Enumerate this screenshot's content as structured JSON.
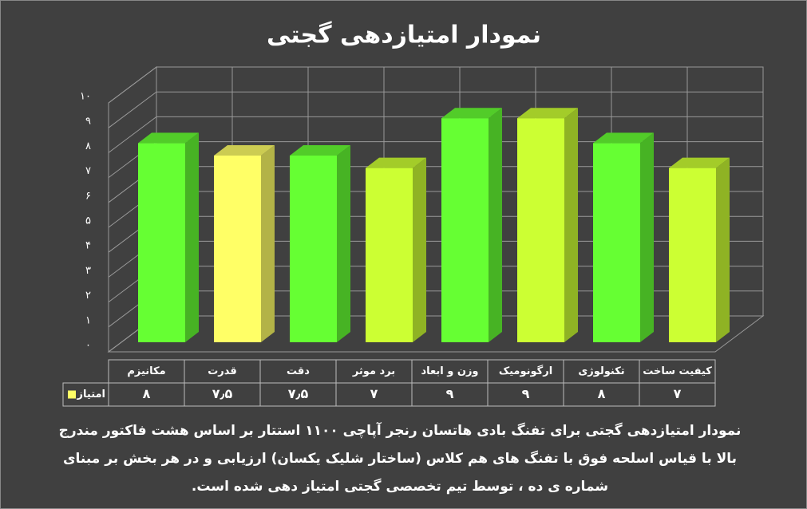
{
  "chart_data": {
    "type": "bar3d",
    "title": "نمودار امتیازدهی گجتی",
    "categories": [
      "مکانیزم",
      "قدرت",
      "دقت",
      "برد موثر",
      "وزن و ابعاد",
      "ارگونومیک",
      "تکنولوژی",
      "کیفیت ساخت"
    ],
    "series": [
      {
        "name": "امتیاز",
        "color": "#ffff66",
        "values": [
          8,
          7.5,
          7.5,
          7,
          9,
          9,
          8,
          7
        ],
        "value_labels": [
          "۸",
          "۷٫۵",
          "۷٫۵",
          "۷",
          "۹",
          "۹",
          "۸",
          "۷"
        ],
        "colors": [
          "#66ff33",
          "#ffff66",
          "#66ff33",
          "#ccff33",
          "#66ff33",
          "#ccff33",
          "#66ff33",
          "#ccff33"
        ]
      }
    ],
    "ylim": [
      0,
      10
    ],
    "yticks": [
      {
        "value": 0,
        "label": "۰"
      },
      {
        "value": 1,
        "label": "۱"
      },
      {
        "value": 2,
        "label": "۲"
      },
      {
        "value": 3,
        "label": "۳"
      },
      {
        "value": 4,
        "label": "۴"
      },
      {
        "value": 5,
        "label": "۵"
      },
      {
        "value": 6,
        "label": "۶"
      },
      {
        "value": 7,
        "label": "۷"
      },
      {
        "value": 8,
        "label": "۸"
      },
      {
        "value": 9,
        "label": "۹"
      },
      {
        "value": 10,
        "label": "۱۰"
      }
    ],
    "grid": true,
    "description": [
      "نمودار امتیازدهی گجتی برای تفنگ بادی هاتسان رنجر آپاچی ۱۱۰۰ استتار بر اساس هشت فاکتور مندرج",
      "بالا با قیاس اسلحه فوق با تفنگ های هم کلاس (ساختار شلیک یکسان) ارزیابی و در هر بخش بر مبنای",
      "شماره ی ده ، توسط تیم تخصصی گجتی امتیاز دهی شده است."
    ]
  }
}
